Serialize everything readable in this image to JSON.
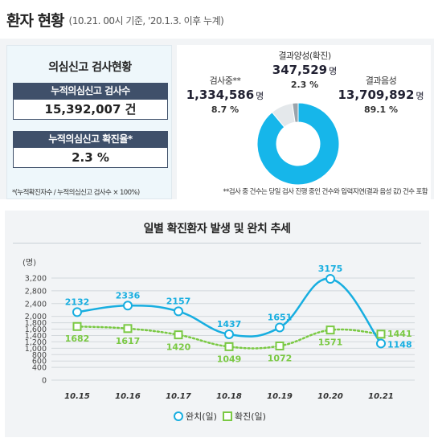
{
  "header": {
    "title": "환자 현황",
    "subtitle": "(10.21. 00시 기준, '20.1.3. 이후 누계)"
  },
  "left_panel": {
    "title": "의심신고 검사현황",
    "cumulative_tests_label": "누적의심신고 검사수",
    "cumulative_tests_value": "15,392,007 건",
    "confirmed_rate_label": "누적의심신고 확진율*",
    "confirmed_rate_value": "2.3 %",
    "note": "*(누적확진자수 / 누적의심신고 검사수 × 100%)"
  },
  "right_panel": {
    "positive": {
      "label": "결과양성(확진)",
      "value": "347,529",
      "unit": "명",
      "percent": "2.3 %"
    },
    "testing": {
      "label": "검사중**",
      "value": "1,334,586",
      "unit": "명",
      "percent": "8.7 %"
    },
    "negative": {
      "label": "결과음성",
      "value": "13,709,892",
      "unit": "명",
      "percent": "89.1 %"
    },
    "note": "**검사 중 건수는 당일 검사 진행 중인 건수와 입력지연(결과 음성 값) 건수 포함",
    "donut": {
      "type": "pie",
      "slices": [
        {
          "name": "결과음성",
          "value": 89.1,
          "color": "#16b6ea"
        },
        {
          "name": "검사중",
          "value": 8.7,
          "color": "#e4e8eb"
        },
        {
          "name": "결과양성",
          "value": 2.3,
          "color": "#9aa4ac"
        }
      ]
    }
  },
  "chart_data": {
    "type": "line",
    "title": "일별 확진환자 발생 및 완치 추세",
    "ylabel": "(명)",
    "ylim": [
      0,
      3200
    ],
    "yticks": [
      "0",
      "400",
      "600",
      "800",
      "1,000",
      "1,200",
      "1,400",
      "1,600",
      "1,800",
      "2,000",
      "2,400",
      "2,800",
      "3,200"
    ],
    "ytick_values": [
      0,
      400,
      600,
      800,
      1000,
      1200,
      1400,
      1600,
      1800,
      2000,
      2400,
      2800,
      3200
    ],
    "categories": [
      "10.15",
      "10.16",
      "10.17",
      "10.18",
      "10.19",
      "10.20",
      "10.21"
    ],
    "series": [
      {
        "name": "완치(일)",
        "values": [
          2132,
          2336,
          2157,
          1437,
          1651,
          3175,
          1148
        ],
        "color": "#17aee0",
        "style": "solid",
        "marker": "circle"
      },
      {
        "name": "확진(일)",
        "values": [
          1682,
          1617,
          1420,
          1049,
          1072,
          1571,
          1441
        ],
        "color": "#7ac943",
        "style": "dotted",
        "marker": "square"
      }
    ],
    "legend": "bottom-center",
    "grid": true
  }
}
